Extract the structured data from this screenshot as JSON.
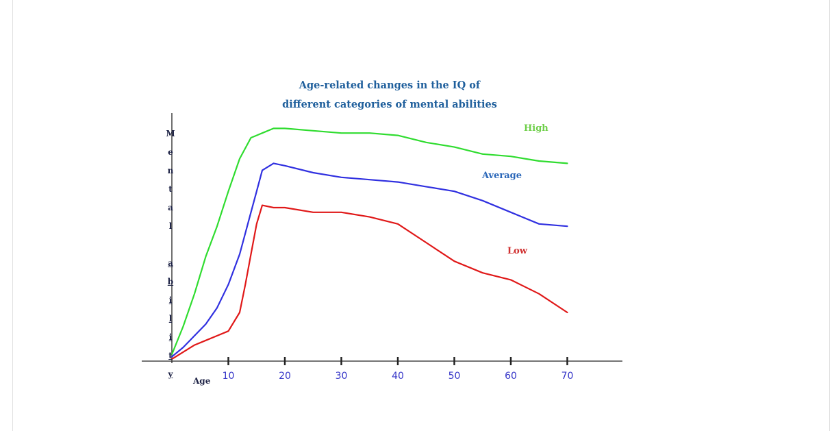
{
  "chart_data": {
    "type": "line",
    "title_line1": "Age-related changes in the IQ of",
    "title_line2": "different categories of mental abilities",
    "xlabel": "Age",
    "ylabel": "Mental ability",
    "ylabel_chars": [
      "M",
      "e",
      "n",
      "t",
      "a",
      "l",
      "",
      "a",
      "b",
      "i",
      "l",
      "i",
      "t",
      "y"
    ],
    "xticks": [
      10,
      20,
      30,
      40,
      50,
      60,
      70
    ],
    "xlim": [
      -5,
      80
    ],
    "ylim": [
      0,
      105
    ],
    "grid": false,
    "colors": {
      "High": "#2fdc2f",
      "Average": "#3030e0",
      "Low": "#e01818",
      "axis": "#222222",
      "tick_labels": "#3535c8"
    },
    "series": [
      {
        "name": "High",
        "label_color": "#6fcf4a",
        "x": [
          0,
          2,
          4,
          6,
          8,
          10,
          12,
          14,
          15,
          16,
          18,
          20,
          25,
          30,
          35,
          40,
          45,
          50,
          55,
          60,
          65,
          70
        ],
        "y": [
          2,
          14,
          28,
          44,
          57,
          72,
          86,
          95,
          96,
          97,
          99,
          99,
          98,
          97,
          97,
          96,
          93,
          91,
          88,
          87,
          85,
          84
        ]
      },
      {
        "name": "Average",
        "label_color": "#2966b8",
        "x": [
          0,
          2,
          4,
          6,
          8,
          10,
          12,
          14,
          15,
          16,
          18,
          20,
          25,
          30,
          35,
          40,
          45,
          50,
          55,
          60,
          65,
          70
        ],
        "y": [
          1,
          5,
          10,
          15,
          22,
          32,
          45,
          63,
          72,
          81,
          84,
          83,
          80,
          78,
          77,
          76,
          74,
          72,
          68,
          63,
          58,
          57
        ]
      },
      {
        "name": "Low",
        "label_color": "#d03030",
        "x": [
          0,
          2,
          4,
          6,
          8,
          10,
          12,
          13,
          14,
          15,
          16,
          18,
          20,
          25,
          30,
          35,
          40,
          45,
          50,
          55,
          60,
          65,
          70
        ],
        "y": [
          0,
          3,
          6,
          8,
          10,
          12,
          20,
          32,
          45,
          58,
          66,
          65,
          65,
          63,
          63,
          61,
          58,
          50,
          42,
          37,
          34,
          28,
          20
        ]
      }
    ]
  }
}
